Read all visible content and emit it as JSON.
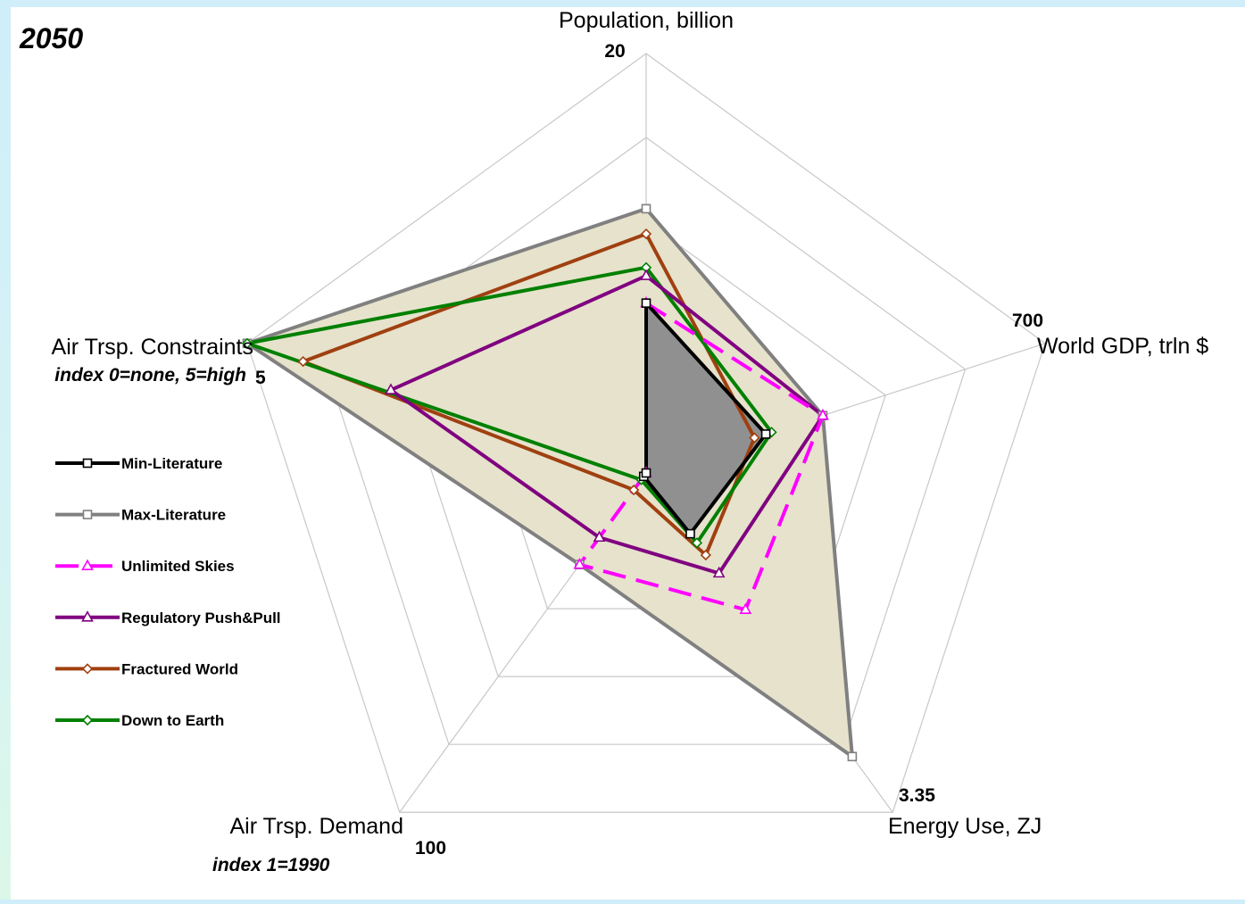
{
  "chart_data": {
    "type": "radar",
    "title": "2050",
    "axes": [
      {
        "name": "Population, billion",
        "max_label": "20",
        "subtitle": "",
        "max": 20
      },
      {
        "name": "World GDP, trln $",
        "max_label": "700",
        "subtitle": "",
        "max": 700
      },
      {
        "name": "Energy Use, ZJ",
        "max_label": "3.35",
        "subtitle": "",
        "max": 3.35
      },
      {
        "name": "Air Trsp. Demand",
        "max_label": "100",
        "subtitle": "index 1=1990",
        "max": 100
      },
      {
        "name": "Air Trsp. Constraints",
        "max_label": "5",
        "subtitle": "index 0=none, 5=high",
        "max": 5
      }
    ],
    "rings": 5,
    "grid": true,
    "legend_position": "left",
    "series": [
      {
        "name": "Min-Literature",
        "color": "#000000",
        "marker": "square",
        "dash": false,
        "fill": "#909090",
        "values": [
          8.1,
          210,
          0.6,
          1,
          0
        ]
      },
      {
        "name": "Max-Literature",
        "color": "#808080",
        "marker": "square",
        "dash": false,
        "fill": "#e6e2cc",
        "values": [
          12.6,
          310,
          2.8,
          27,
          5
        ]
      },
      {
        "name": "Unlimited Skies",
        "color": "#ff00ff",
        "marker": "triangle",
        "dash": true,
        "fill": null,
        "values": [
          8.1,
          310,
          1.35,
          27,
          0
        ]
      },
      {
        "name": "Regulatory Push&Pull",
        "color": "#800080",
        "marker": "triangle",
        "dash": false,
        "fill": null,
        "values": [
          9.4,
          310,
          0.99,
          19,
          3.2
        ]
      },
      {
        "name": "Fractured World",
        "color": "#a04010",
        "marker": "diamond",
        "dash": false,
        "fill": null,
        "values": [
          11.4,
          190,
          0.81,
          5,
          4.3
        ]
      },
      {
        "name": "Down to Earth",
        "color": "#008000",
        "marker": "diamond",
        "dash": false,
        "fill": null,
        "values": [
          9.8,
          220,
          0.69,
          2,
          5
        ]
      }
    ]
  }
}
